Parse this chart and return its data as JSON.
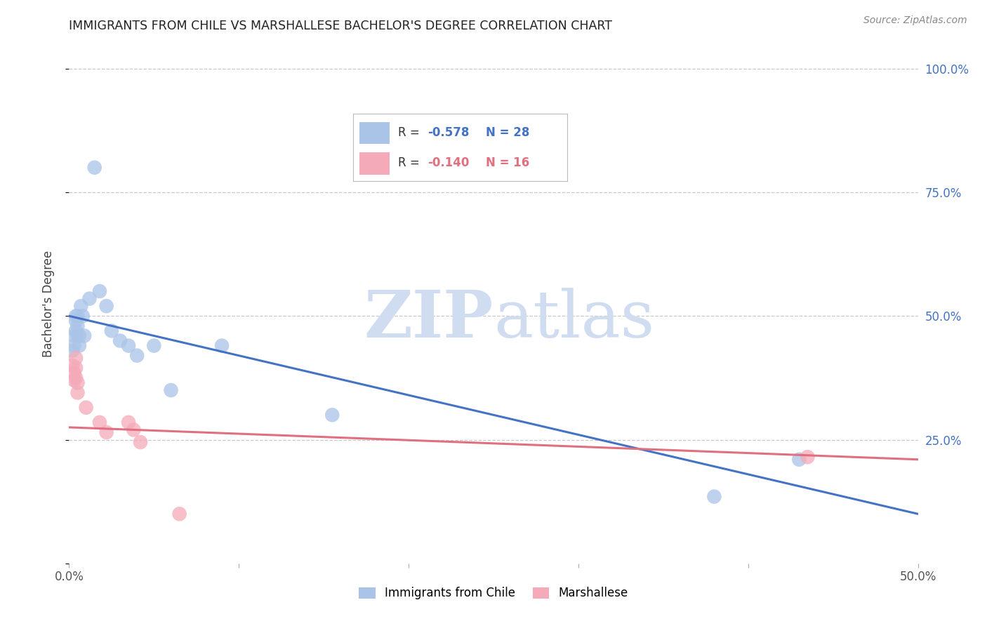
{
  "title": "IMMIGRANTS FROM CHILE VS MARSHALLESE BACHELOR'S DEGREE CORRELATION CHART",
  "source": "Source: ZipAtlas.com",
  "ylabel": "Bachelor's Degree",
  "right_yticks": [
    "100.0%",
    "75.0%",
    "50.0%",
    "25.0%"
  ],
  "right_ytick_vals": [
    1.0,
    0.75,
    0.5,
    0.25
  ],
  "xlim": [
    0.0,
    0.5
  ],
  "ylim": [
    0.0,
    1.05
  ],
  "legend": {
    "blue_r": "-0.578",
    "blue_n": "28",
    "pink_r": "-0.140",
    "pink_n": "16"
  },
  "blue_scatter": [
    [
      0.002,
      0.43
    ],
    [
      0.003,
      0.44
    ],
    [
      0.003,
      0.46
    ],
    [
      0.004,
      0.47
    ],
    [
      0.004,
      0.49
    ],
    [
      0.004,
      0.5
    ],
    [
      0.005,
      0.46
    ],
    [
      0.005,
      0.48
    ],
    [
      0.005,
      0.5
    ],
    [
      0.006,
      0.44
    ],
    [
      0.006,
      0.46
    ],
    [
      0.007,
      0.52
    ],
    [
      0.008,
      0.5
    ],
    [
      0.009,
      0.46
    ],
    [
      0.012,
      0.535
    ],
    [
      0.015,
      0.8
    ],
    [
      0.018,
      0.55
    ],
    [
      0.022,
      0.52
    ],
    [
      0.025,
      0.47
    ],
    [
      0.03,
      0.45
    ],
    [
      0.035,
      0.44
    ],
    [
      0.04,
      0.42
    ],
    [
      0.05,
      0.44
    ],
    [
      0.06,
      0.35
    ],
    [
      0.09,
      0.44
    ],
    [
      0.155,
      0.3
    ],
    [
      0.38,
      0.135
    ],
    [
      0.43,
      0.21
    ]
  ],
  "pink_scatter": [
    [
      0.002,
      0.4
    ],
    [
      0.003,
      0.385
    ],
    [
      0.003,
      0.37
    ],
    [
      0.004,
      0.415
    ],
    [
      0.004,
      0.395
    ],
    [
      0.004,
      0.375
    ],
    [
      0.005,
      0.365
    ],
    [
      0.005,
      0.345
    ],
    [
      0.01,
      0.315
    ],
    [
      0.018,
      0.285
    ],
    [
      0.022,
      0.265
    ],
    [
      0.035,
      0.285
    ],
    [
      0.038,
      0.27
    ],
    [
      0.042,
      0.245
    ],
    [
      0.065,
      0.1
    ],
    [
      0.435,
      0.215
    ]
  ],
  "blue_line_x": [
    0.0,
    0.5
  ],
  "blue_line_y": [
    0.5,
    0.1
  ],
  "pink_line_x": [
    0.0,
    0.5
  ],
  "pink_line_y": [
    0.275,
    0.21
  ],
  "blue_scatter_color": "#aac4e8",
  "pink_scatter_color": "#f4aab8",
  "blue_line_color": "#4472c4",
  "pink_line_color": "#e07080",
  "background_color": "#ffffff",
  "grid_color": "#c8c8c8",
  "watermark_color": "#d0ddf0",
  "watermark_text": "ZIPatlas",
  "xtick_positions": [
    0.0,
    0.1,
    0.2,
    0.3,
    0.4,
    0.5
  ],
  "ytick_positions": [
    0.0,
    0.25,
    0.5,
    0.75,
    1.0
  ]
}
